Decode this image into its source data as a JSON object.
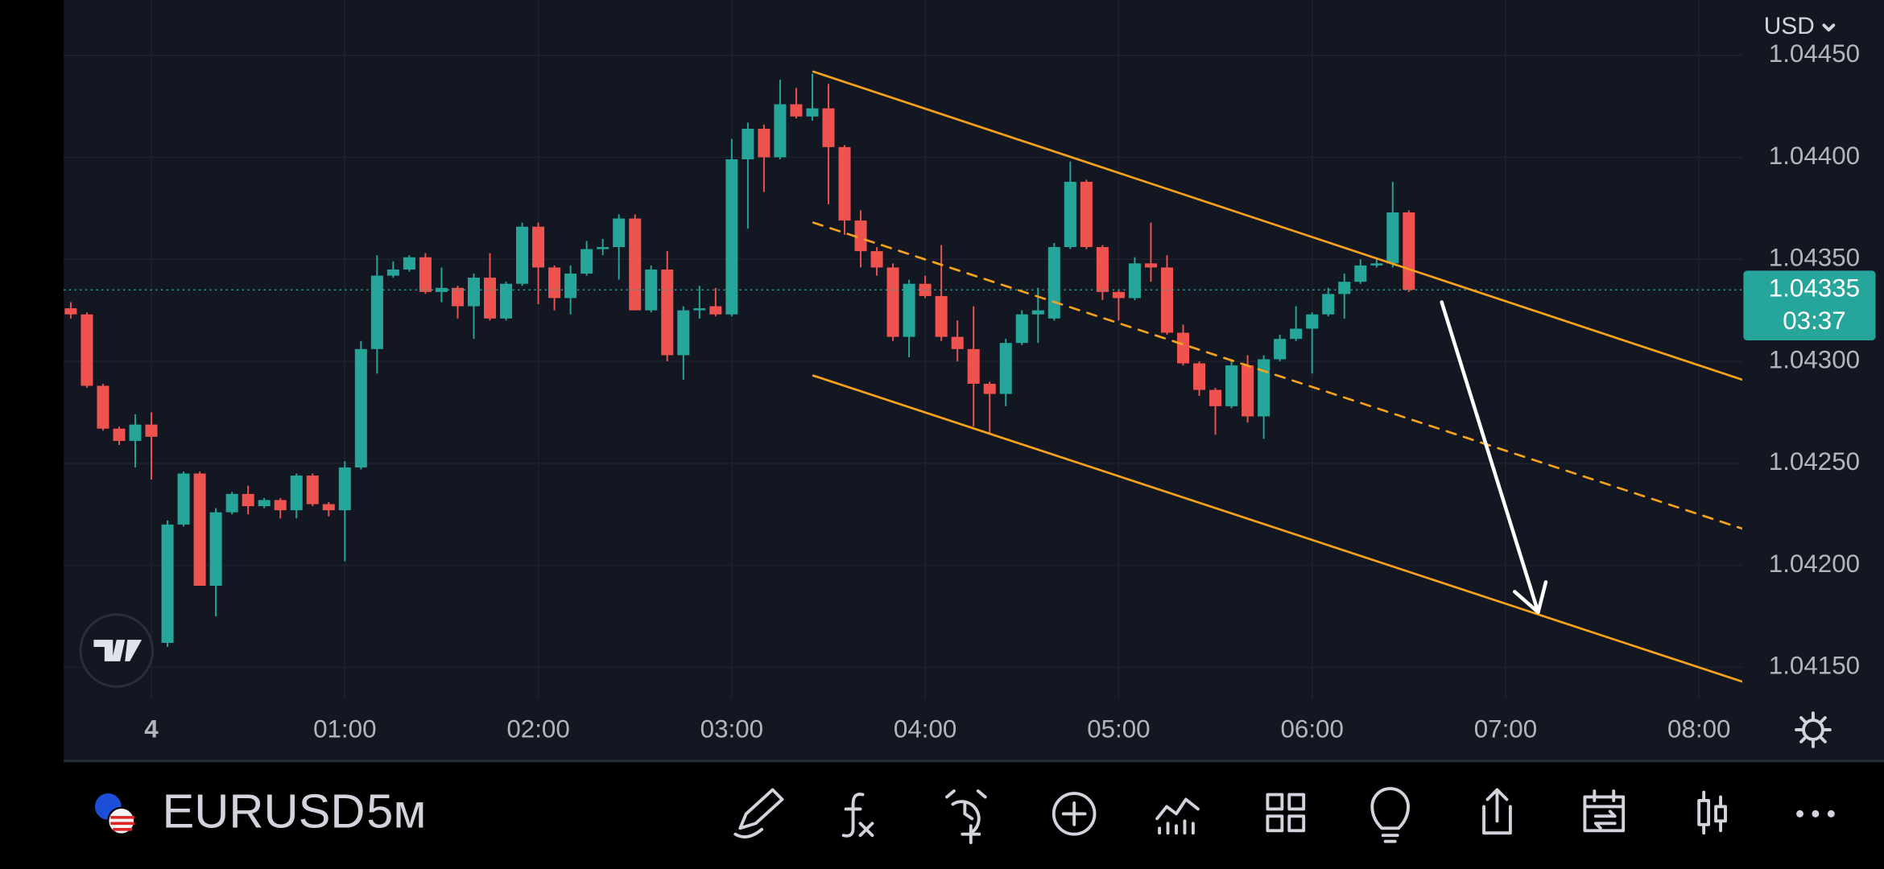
{
  "chart_data": {
    "type": "candlestick",
    "symbol": "EURUSD",
    "interval": "5м",
    "currency": "USD",
    "up_color": "#26a69a",
    "down_color": "#ef5350",
    "grid": true,
    "x": [
      -25,
      -20,
      -15,
      -10,
      -5,
      0,
      5,
      10,
      15,
      20,
      25,
      30,
      35,
      40,
      45,
      50,
      55,
      60,
      65,
      70,
      75,
      80,
      85,
      90,
      95,
      100,
      105,
      110,
      115,
      120,
      125,
      130,
      135,
      140,
      145,
      150,
      155,
      160,
      165,
      170,
      175,
      180,
      185,
      190,
      195,
      200,
      205,
      210,
      215,
      220,
      225,
      230,
      235,
      240,
      245,
      250,
      255,
      260,
      265,
      270,
      275,
      280,
      285,
      290,
      295,
      300,
      305,
      310,
      315,
      320,
      325,
      330,
      335,
      340,
      345,
      350,
      355,
      360,
      365,
      370,
      375,
      380,
      385,
      390
    ],
    "open": [
      1.04326,
      1.04323,
      1.04288,
      1.04267,
      1.04261,
      1.04269,
      1.04162,
      1.0422,
      1.04245,
      1.0419,
      1.04226,
      1.04235,
      1.04229,
      1.04232,
      1.04227,
      1.04244,
      1.0423,
      1.04227,
      1.04248,
      1.04306,
      1.04342,
      1.04345,
      1.04351,
      1.04334,
      1.04336,
      1.04327,
      1.04341,
      1.04321,
      1.04338,
      1.04366,
      1.04346,
      1.04331,
      1.04343,
      1.04355,
      1.04356,
      1.0437,
      1.04325,
      1.04345,
      1.04303,
      1.04325,
      1.04327,
      1.04323,
      1.04399,
      1.04414,
      1.044,
      1.04426,
      1.0442,
      1.04424,
      1.04405,
      1.04369,
      1.04354,
      1.04346,
      1.04312,
      1.04338,
      1.04332,
      1.04312,
      1.04306,
      1.04289,
      1.04284,
      1.04309,
      1.04323,
      1.04321,
      1.04356,
      1.04388,
      1.04356,
      1.04334,
      1.04331,
      1.04348,
      1.04346,
      1.04314,
      1.04299,
      1.04286,
      1.04278,
      1.04298,
      1.04273,
      1.04301,
      1.04311,
      1.04316,
      1.04323,
      1.04333,
      1.04339,
      1.04347,
      1.04348,
      1.04373
    ],
    "high": [
      1.04329,
      1.04324,
      1.04289,
      1.04268,
      1.04274,
      1.04275,
      1.04222,
      1.04246,
      1.04246,
      1.04228,
      1.04236,
      1.04239,
      1.04233,
      1.04233,
      1.04245,
      1.04245,
      1.04231,
      1.04251,
      1.0431,
      1.04352,
      1.04349,
      1.04352,
      1.04353,
      1.04346,
      1.04337,
      1.04343,
      1.04353,
      1.04339,
      1.04368,
      1.04368,
      1.04347,
      1.04347,
      1.04359,
      1.0436,
      1.04372,
      1.04372,
      1.04347,
      1.04354,
      1.04327,
      1.04337,
      1.04336,
      1.04409,
      1.04417,
      1.04416,
      1.04438,
      1.04434,
      1.04441,
      1.04436,
      1.04406,
      1.04374,
      1.04356,
      1.04348,
      1.0434,
      1.04342,
      1.04357,
      1.0432,
      1.04327,
      1.0429,
      1.04311,
      1.04325,
      1.04336,
      1.04358,
      1.04398,
      1.04389,
      1.04357,
      1.04335,
      1.04351,
      1.04368,
      1.04352,
      1.04318,
      1.043,
      1.04287,
      1.04301,
      1.04303,
      1.04303,
      1.04313,
      1.04327,
      1.04324,
      1.04336,
      1.04343,
      1.0435,
      1.0435,
      1.04388,
      1.04374
    ],
    "low": [
      1.04321,
      1.04287,
      1.04266,
      1.04259,
      1.04248,
      1.04242,
      1.0416,
      1.04219,
      1.0419,
      1.04175,
      1.04225,
      1.04225,
      1.04228,
      1.04223,
      1.04223,
      1.04229,
      1.04224,
      1.04202,
      1.04247,
      1.04294,
      1.04341,
      1.04344,
      1.04333,
      1.04329,
      1.04321,
      1.04311,
      1.0432,
      1.0432,
      1.04337,
      1.04328,
      1.04325,
      1.04323,
      1.04342,
      1.04352,
      1.0434,
      1.04325,
      1.04324,
      1.043,
      1.04291,
      1.04321,
      1.04322,
      1.04322,
      1.04365,
      1.04383,
      1.04399,
      1.04419,
      1.04418,
      1.04377,
      1.04362,
      1.04346,
      1.04342,
      1.0431,
      1.04302,
      1.04331,
      1.0431,
      1.043,
      1.04268,
      1.04265,
      1.04278,
      1.04308,
      1.04309,
      1.0432,
      1.04355,
      1.04355,
      1.0433,
      1.0432,
      1.0433,
      1.04339,
      1.04313,
      1.04298,
      1.04283,
      1.04264,
      1.04277,
      1.0427,
      1.04262,
      1.043,
      1.0431,
      1.04294,
      1.04322,
      1.04321,
      1.04338,
      1.04346,
      1.04346,
      1.04334
    ],
    "close": [
      1.04323,
      1.04288,
      1.04267,
      1.04261,
      1.04269,
      1.04263,
      1.0422,
      1.04245,
      1.0419,
      1.04226,
      1.04235,
      1.04229,
      1.04232,
      1.04227,
      1.04244,
      1.0423,
      1.04227,
      1.04248,
      1.04306,
      1.04342,
      1.04345,
      1.04351,
      1.04334,
      1.04336,
      1.04327,
      1.04341,
      1.04321,
      1.04338,
      1.04366,
      1.04346,
      1.04331,
      1.04343,
      1.04355,
      1.04356,
      1.0437,
      1.04325,
      1.04345,
      1.04303,
      1.04325,
      1.04326,
      1.04323,
      1.04399,
      1.04414,
      1.044,
      1.04426,
      1.0442,
      1.04424,
      1.04405,
      1.04369,
      1.04354,
      1.04346,
      1.04312,
      1.04338,
      1.04332,
      1.04312,
      1.04306,
      1.04289,
      1.04284,
      1.04309,
      1.04323,
      1.04325,
      1.04356,
      1.04388,
      1.04356,
      1.04334,
      1.04331,
      1.04348,
      1.04346,
      1.04314,
      1.04299,
      1.04286,
      1.04278,
      1.04298,
      1.04273,
      1.04301,
      1.04311,
      1.04316,
      1.04323,
      1.04333,
      1.04339,
      1.04347,
      1.04348,
      1.04373,
      1.04335
    ],
    "xlim": [
      -27.2,
      493.4
    ],
    "xticks": [
      {
        "value": 0,
        "label": "4"
      },
      {
        "value": 60,
        "label": "01:00"
      },
      {
        "value": 120,
        "label": "02:00"
      },
      {
        "value": 180,
        "label": "03:00"
      },
      {
        "value": 240,
        "label": "04:00"
      },
      {
        "value": 300,
        "label": "05:00"
      },
      {
        "value": 360,
        "label": "06:00"
      },
      {
        "value": 420,
        "label": "07:00"
      },
      {
        "value": 480,
        "label": "08:00"
      }
    ],
    "ylim": [
      1.041347,
      1.044771
    ],
    "yticks": [
      {
        "value": 1.0415,
        "label": "1.04150"
      },
      {
        "value": 1.042,
        "label": "1.04200"
      },
      {
        "value": 1.0425,
        "label": "1.04250"
      },
      {
        "value": 1.043,
        "label": "1.04300"
      },
      {
        "value": 1.0435,
        "label": "1.04350"
      },
      {
        "value": 1.044,
        "label": "1.04400"
      },
      {
        "value": 1.0445,
        "label": "1.04450"
      }
    ],
    "last_price": {
      "value": 1.04335,
      "countdown": "03:37",
      "color": "#26a69a"
    },
    "drawings": [
      {
        "type": "line",
        "color": "#f7a21b",
        "dashed": false,
        "x": [
          205.3,
          493.4
        ],
        "y": [
          1.04442,
          1.04291
        ]
      },
      {
        "type": "line",
        "color": "#f7a21b",
        "dashed": true,
        "x": [
          205.3,
          493.4
        ],
        "y": [
          1.04368,
          1.04218
        ]
      },
      {
        "type": "line",
        "color": "#f7a21b",
        "dashed": false,
        "x": [
          205.3,
          493.4
        ],
        "y": [
          1.04293,
          1.04143
        ]
      },
      {
        "type": "arrow",
        "color": "#ffffff",
        "dashed": false,
        "x": [
          400.2,
          430.1
        ],
        "y": [
          1.04329,
          1.04177
        ]
      }
    ]
  }
}
